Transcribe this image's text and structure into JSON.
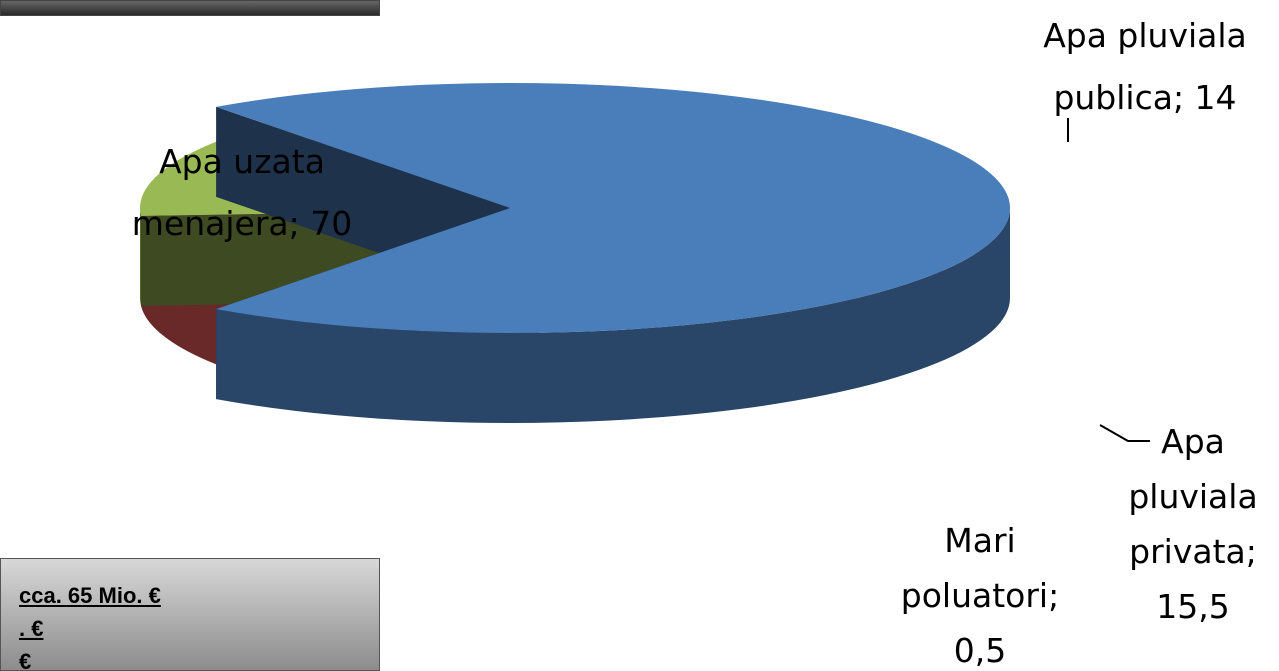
{
  "chart_data": {
    "type": "pie",
    "title": "",
    "slices": [
      {
        "label": "Apa uzata menajera",
        "value": 70,
        "color": "#4A7EBB"
      },
      {
        "label": "Apa pluviala publica",
        "value": 14,
        "color": "#BE4B48"
      },
      {
        "label": "Apa pluviala privata",
        "value": 15.5,
        "color": "#98B954"
      },
      {
        "label": "Mari poluatori",
        "value": 0.5,
        "color": "#7D60A0"
      }
    ],
    "data_labels": [
      {
        "lines": [
          "Apa uzata",
          "menajera; 70"
        ]
      },
      {
        "lines": [
          "Apa pluviala",
          "publica; 14"
        ]
      },
      {
        "lines": [
          "Apa",
          "pluviala",
          "privata;",
          "15,5"
        ]
      },
      {
        "lines": [
          "Mari",
          "poluatori;",
          "0,5"
        ]
      }
    ]
  },
  "info_box": {
    "lines": [
      "cca. 65 Mio. €",
      ". €",
      "€"
    ]
  }
}
